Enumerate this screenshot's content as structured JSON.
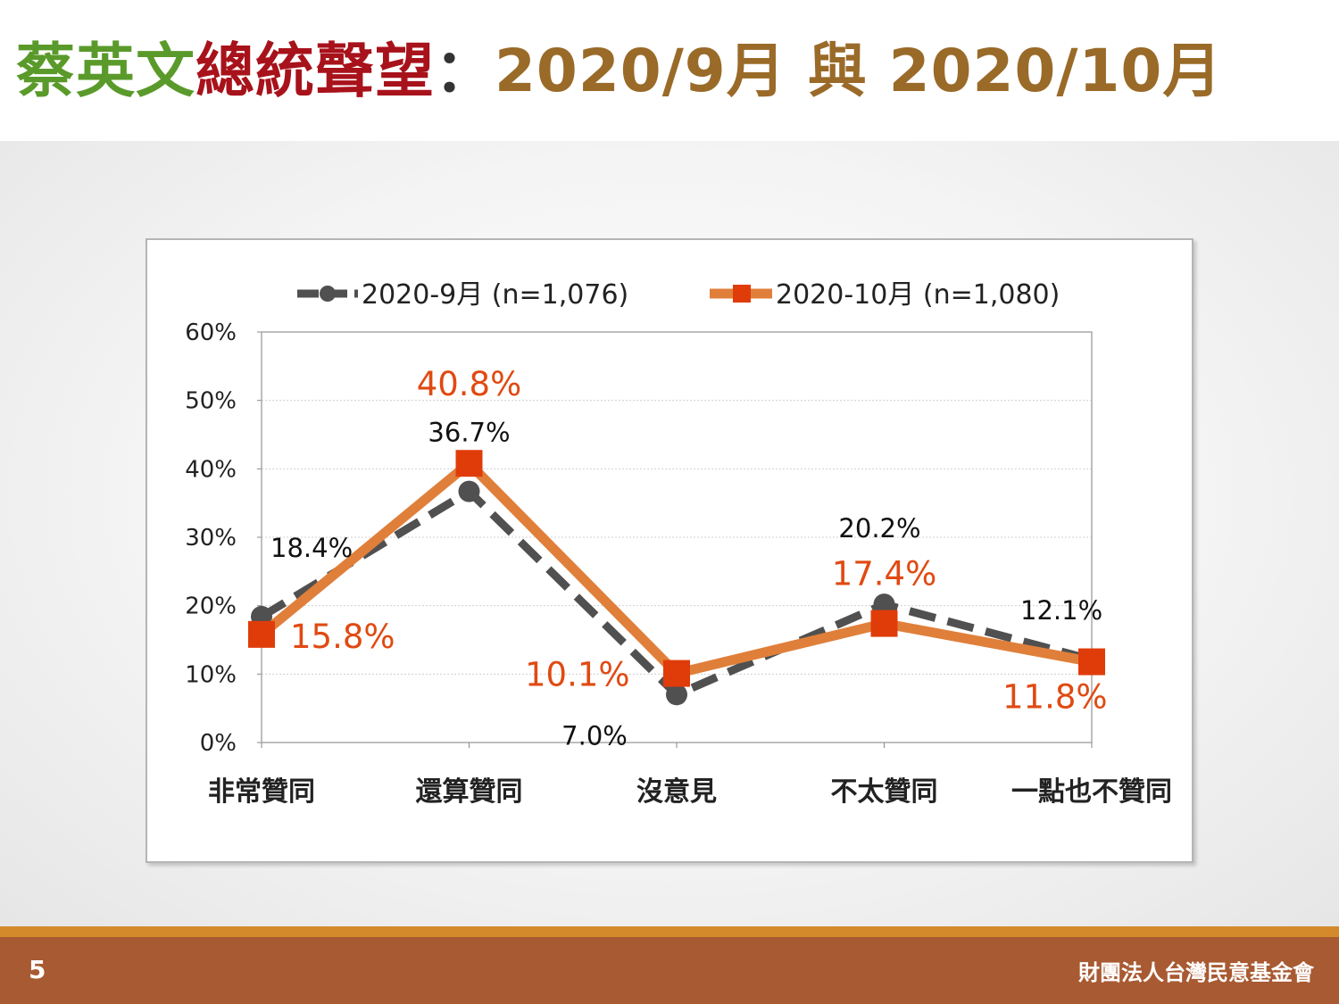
{
  "slide": {
    "title_part1": "蔡英文",
    "title_part2": "總統聲望",
    "title_colon": "：",
    "title_part3": "2020/9月 與 2020/10月",
    "page_number": "5",
    "organization": "財團法人台灣民意基金會"
  },
  "colors": {
    "series_sep": "#505050",
    "series_oct": "#e07f3a",
    "marker_oct": "#e03c0a",
    "label_oct": "#e04a12",
    "label_sep": "#111111"
  },
  "chart_data": {
    "type": "line",
    "categories": [
      "非常贊同",
      "還算贊同",
      "沒意見",
      "不太贊同",
      "一點也不贊同"
    ],
    "series": [
      {
        "name": "2020-9月  (n=1,076)",
        "values": [
          18.4,
          36.7,
          7.0,
          20.2,
          12.1
        ],
        "labels": [
          "18.4%",
          "36.7%",
          "7.0%",
          "20.2%",
          "12.1%"
        ]
      },
      {
        "name": "2020-10月  (n=1,080)",
        "values": [
          15.8,
          40.8,
          10.1,
          17.4,
          11.8
        ],
        "labels": [
          "15.8%",
          "40.8%",
          "10.1%",
          "17.4%",
          "11.8%"
        ]
      }
    ],
    "yticks": [
      "0%",
      "10%",
      "20%",
      "30%",
      "40%",
      "50%",
      "60%"
    ],
    "ylim": [
      0,
      60
    ],
    "grid": true,
    "legend_position": "top"
  }
}
